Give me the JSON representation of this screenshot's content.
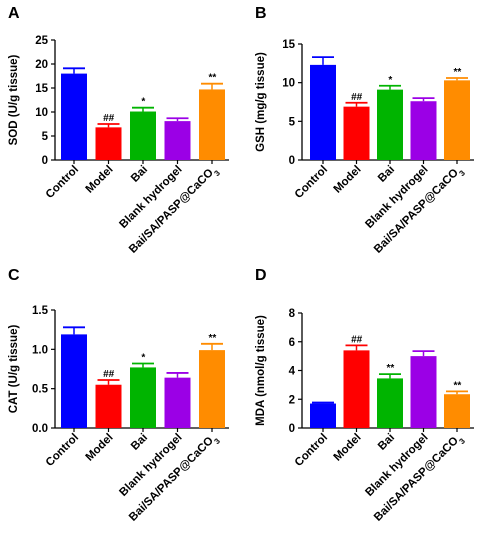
{
  "colors": {
    "blue": "#0000ff",
    "red": "#ff0000",
    "green": "#00b400",
    "purple": "#9b00e6",
    "orange": "#ff8c00"
  },
  "chart_data": [
    {
      "panel": "A",
      "type": "bar",
      "ylabel": "SOD (U/g tissue)",
      "ylim": [
        0,
        25
      ],
      "yticks": [
        "0",
        "5",
        "10",
        "15",
        "20",
        "25"
      ],
      "categories": [
        "Control",
        "Model",
        "Bai",
        "Blank hydrogel",
        "Bai/SA/PASP@CaCO3"
      ],
      "values": [
        18.0,
        6.8,
        10.1,
        8.1,
        14.7
      ],
      "errors": [
        1.1,
        0.7,
        0.8,
        0.6,
        1.2
      ],
      "annotations": [
        "",
        "##",
        "*",
        "",
        "**"
      ]
    },
    {
      "panel": "B",
      "type": "bar",
      "ylabel": "GSH (mg/g tissue)",
      "ylim": [
        0,
        15
      ],
      "yticks": [
        "0",
        "5",
        "10",
        "15"
      ],
      "categories": [
        "Control",
        "Model",
        "Bai",
        "Blank hydrogel",
        "Bai/SA/PASP@CaCO3"
      ],
      "values": [
        12.3,
        6.9,
        9.1,
        7.6,
        10.3
      ],
      "errors": [
        1.0,
        0.5,
        0.5,
        0.4,
        0.3
      ],
      "annotations": [
        "",
        "##",
        "*",
        "",
        "**"
      ]
    },
    {
      "panel": "C",
      "type": "bar",
      "ylabel": "CAT (U/g tissue)",
      "ylim": [
        0,
        1.5
      ],
      "yticks": [
        "0.0",
        "0.5",
        "1.0",
        "1.5"
      ],
      "categories": [
        "Control",
        "Model",
        "Bai",
        "Blank hydrogel",
        "Bai/SA/PASP@CaCO3"
      ],
      "values": [
        1.19,
        0.55,
        0.77,
        0.64,
        0.99
      ],
      "errors": [
        0.09,
        0.06,
        0.05,
        0.06,
        0.08
      ],
      "annotations": [
        "",
        "##",
        "*",
        "",
        "**"
      ]
    },
    {
      "panel": "D",
      "type": "bar",
      "ylabel": "MDA (nmol/g tissue)",
      "ylim": [
        0,
        8
      ],
      "yticks": [
        "0",
        "2",
        "4",
        "6",
        "8"
      ],
      "categories": [
        "Control",
        "Model",
        "Bai",
        "Blank hydrogel",
        "Bai/SA/PASP@CaCO3"
      ],
      "values": [
        1.7,
        5.4,
        3.45,
        5.0,
        2.35
      ],
      "errors": [
        0.07,
        0.35,
        0.3,
        0.35,
        0.2
      ],
      "annotations": [
        "",
        "##",
        "**",
        "",
        "**"
      ]
    }
  ]
}
